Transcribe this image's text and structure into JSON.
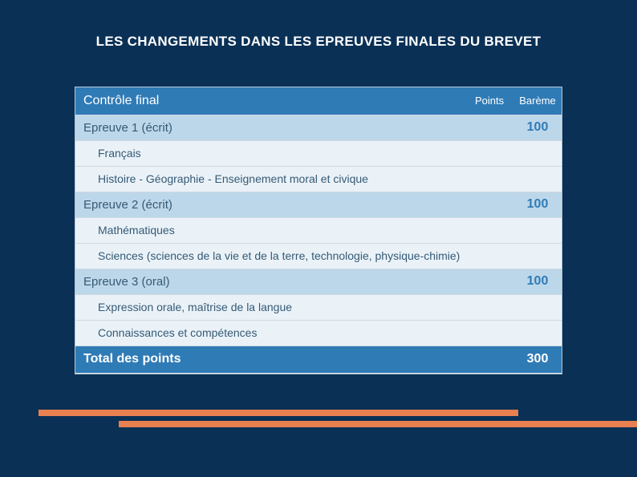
{
  "title": "LES CHANGEMENTS DANS LES EPREUVES FINALES DU BREVET",
  "colors": {
    "page_bg": "#0a3055",
    "header_bg": "#2f7bb6",
    "header_fg": "#ffffff",
    "row_ep_bg": "#bdd7ea",
    "row_sub_bg": "#eaf2f8",
    "row_fg": "#355a75",
    "bareme_fg": "#2f7bb6",
    "accent_bar": "#e8804f",
    "border": "#cfd9e2"
  },
  "table": {
    "header": {
      "main": "Contrôle final",
      "points": "Points",
      "bareme": "Barème"
    },
    "rows": [
      {
        "type": "ep",
        "label": "Epreuve 1 (écrit)",
        "points": "",
        "bareme": "100"
      },
      {
        "type": "sub",
        "label": "Français",
        "points": "",
        "bareme": ""
      },
      {
        "type": "sub",
        "label": "Histoire - Géographie - Enseignement moral et civique",
        "points": "",
        "bareme": ""
      },
      {
        "type": "ep",
        "label": "Epreuve 2 (écrit)",
        "points": "",
        "bareme": "100"
      },
      {
        "type": "sub",
        "label": "Mathématiques",
        "points": "",
        "bareme": ""
      },
      {
        "type": "sub",
        "label": "Sciences (sciences de la vie et de la terre, technologie, physique-chimie)",
        "points": "",
        "bareme": ""
      },
      {
        "type": "ep",
        "label": "Epreuve 3 (oral)",
        "points": "",
        "bareme": "100"
      },
      {
        "type": "sub",
        "label": "Expression orale, maîtrise de la langue",
        "points": "",
        "bareme": ""
      },
      {
        "type": "sub",
        "label": "Connaissances et compétences",
        "points": "",
        "bareme": ""
      },
      {
        "type": "total",
        "label": "Total des points",
        "points": "",
        "bareme": "300"
      }
    ]
  }
}
